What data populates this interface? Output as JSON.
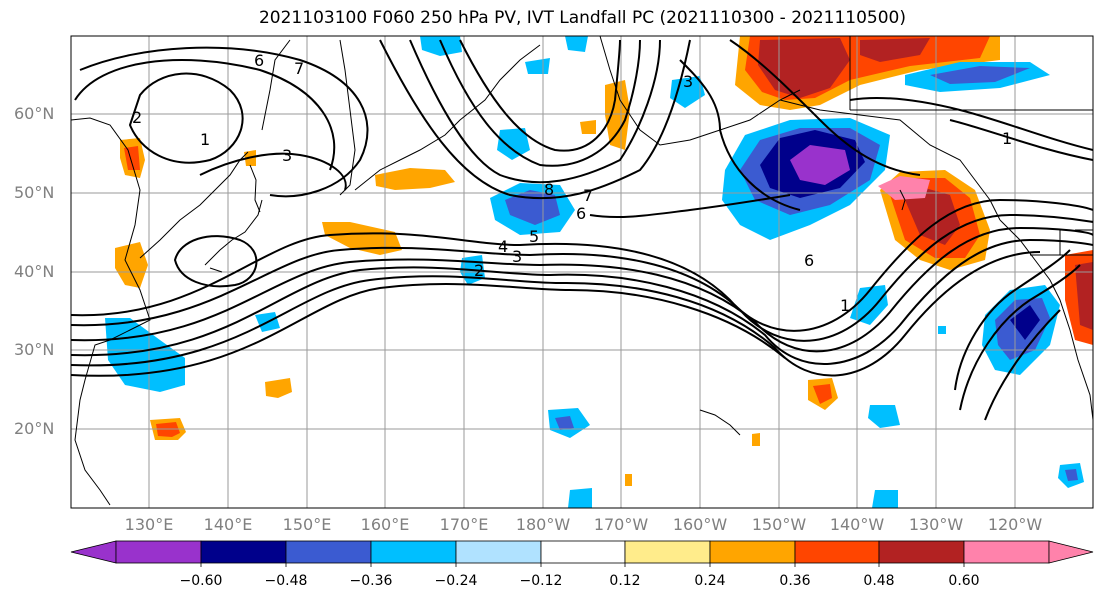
{
  "title": "2021103100 F060 250 hPa PV, IVT Landfall PC (2021110300 - 2021110500)",
  "lat_labels": [
    "60°N",
    "50°N",
    "40°N",
    "30°N",
    "20°N"
  ],
  "lon_labels": [
    "130°E",
    "140°E",
    "150°E",
    "160°E",
    "170°E",
    "180°W",
    "170°W",
    "160°W",
    "150°W",
    "140°W",
    "130°W",
    "120°W"
  ],
  "contour_labels": [
    "6",
    "7",
    "2",
    "1",
    "3",
    "8",
    "7",
    "6",
    "5",
    "4",
    "3",
    "2",
    "6",
    "1",
    "1",
    "3"
  ],
  "colorbar": {
    "ticks": [
      "−0.60",
      "−0.48",
      "−0.36",
      "−0.24",
      "−0.12",
      "0.12",
      "0.24",
      "0.36",
      "0.48",
      "0.60"
    ],
    "colors": [
      "#9932cc",
      "#00008b",
      "#3b5bd1",
      "#00bfff",
      "#b0e2ff",
      "#ffffff",
      "#ffec8b",
      "#ffa500",
      "#ff4500",
      "#b22222",
      "#ff82ab"
    ]
  }
}
